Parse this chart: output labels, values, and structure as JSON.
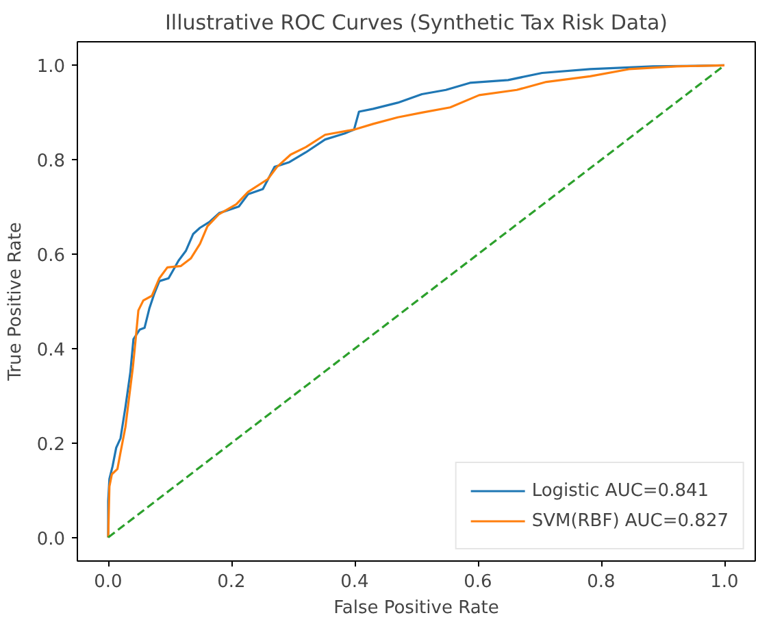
{
  "chart_data": {
    "type": "line",
    "title": "Illustrative ROC Curves (Synthetic Tax Risk Data)",
    "xlabel": "False Positive Rate",
    "ylabel": "True Positive Rate",
    "xlim": [
      -0.05,
      1.05
    ],
    "ylim": [
      -0.05,
      1.05
    ],
    "xticks": [
      {
        "value": 0,
        "label": "0.0"
      },
      {
        "value": 0.2,
        "label": "0.2"
      },
      {
        "value": 0.4,
        "label": "0.4"
      },
      {
        "value": 0.6,
        "label": "0.6"
      },
      {
        "value": 0.8,
        "label": "0.8"
      },
      {
        "value": 1,
        "label": "1.0"
      }
    ],
    "yticks": [
      {
        "value": 0,
        "label": "0.0"
      },
      {
        "value": 0.2,
        "label": "0.2"
      },
      {
        "value": 0.4,
        "label": "0.4"
      },
      {
        "value": 0.6,
        "label": "0.6"
      },
      {
        "value": 0.8,
        "label": "0.8"
      },
      {
        "value": 1,
        "label": "1.0"
      }
    ],
    "grid": false,
    "legend": "bottom right",
    "marker": "none",
    "series": [
      {
        "name": "Logistic AUC=0.841",
        "color": "#1f77b4",
        "line_style": "solid",
        "x": [
          0,
          0,
          0.002,
          0.007,
          0.013,
          0.02,
          0.028,
          0.036,
          0.041,
          0.051,
          0.059,
          0.067,
          0.075,
          0.083,
          0.098,
          0.114,
          0.126,
          0.138,
          0.149,
          0.165,
          0.18,
          0.212,
          0.227,
          0.251,
          0.27,
          0.294,
          0.321,
          0.352,
          0.384,
          0.399,
          0.407,
          0.43,
          0.47,
          0.509,
          0.548,
          0.587,
          0.649,
          0.704,
          0.782,
          0.884,
          1
        ],
        "values": [
          0,
          0.077,
          0.124,
          0.15,
          0.19,
          0.21,
          0.276,
          0.35,
          0.42,
          0.44,
          0.444,
          0.486,
          0.517,
          0.543,
          0.549,
          0.586,
          0.607,
          0.643,
          0.656,
          0.669,
          0.687,
          0.701,
          0.727,
          0.738,
          0.785,
          0.795,
          0.816,
          0.843,
          0.856,
          0.864,
          0.902,
          0.908,
          0.921,
          0.939,
          0.948,
          0.963,
          0.969,
          0.984,
          0.992,
          0.998,
          1
        ]
      },
      {
        "name": "SVM(RBF) AUC=0.827",
        "color": "#ff7f0e",
        "line_style": "solid",
        "x": [
          0,
          0.002,
          0.006,
          0.015,
          0.02,
          0.028,
          0.034,
          0.04,
          0.044,
          0.049,
          0.057,
          0.071,
          0.083,
          0.096,
          0.118,
          0.134,
          0.149,
          0.161,
          0.18,
          0.208,
          0.227,
          0.259,
          0.274,
          0.296,
          0.321,
          0.352,
          0.399,
          0.43,
          0.47,
          0.509,
          0.555,
          0.602,
          0.663,
          0.711,
          0.782,
          0.845,
          0.923,
          1
        ],
        "values": [
          0,
          0.108,
          0.134,
          0.145,
          0.18,
          0.234,
          0.297,
          0.36,
          0.412,
          0.481,
          0.502,
          0.512,
          0.549,
          0.572,
          0.575,
          0.591,
          0.622,
          0.659,
          0.685,
          0.706,
          0.732,
          0.759,
          0.785,
          0.811,
          0.827,
          0.853,
          0.864,
          0.876,
          0.89,
          0.9,
          0.911,
          0.937,
          0.948,
          0.965,
          0.977,
          0.992,
          0.998,
          1
        ]
      },
      {
        "color": "#2ca02c",
        "line_style": "dashed",
        "x": [
          0,
          1
        ],
        "values": [
          0,
          1
        ]
      }
    ]
  }
}
